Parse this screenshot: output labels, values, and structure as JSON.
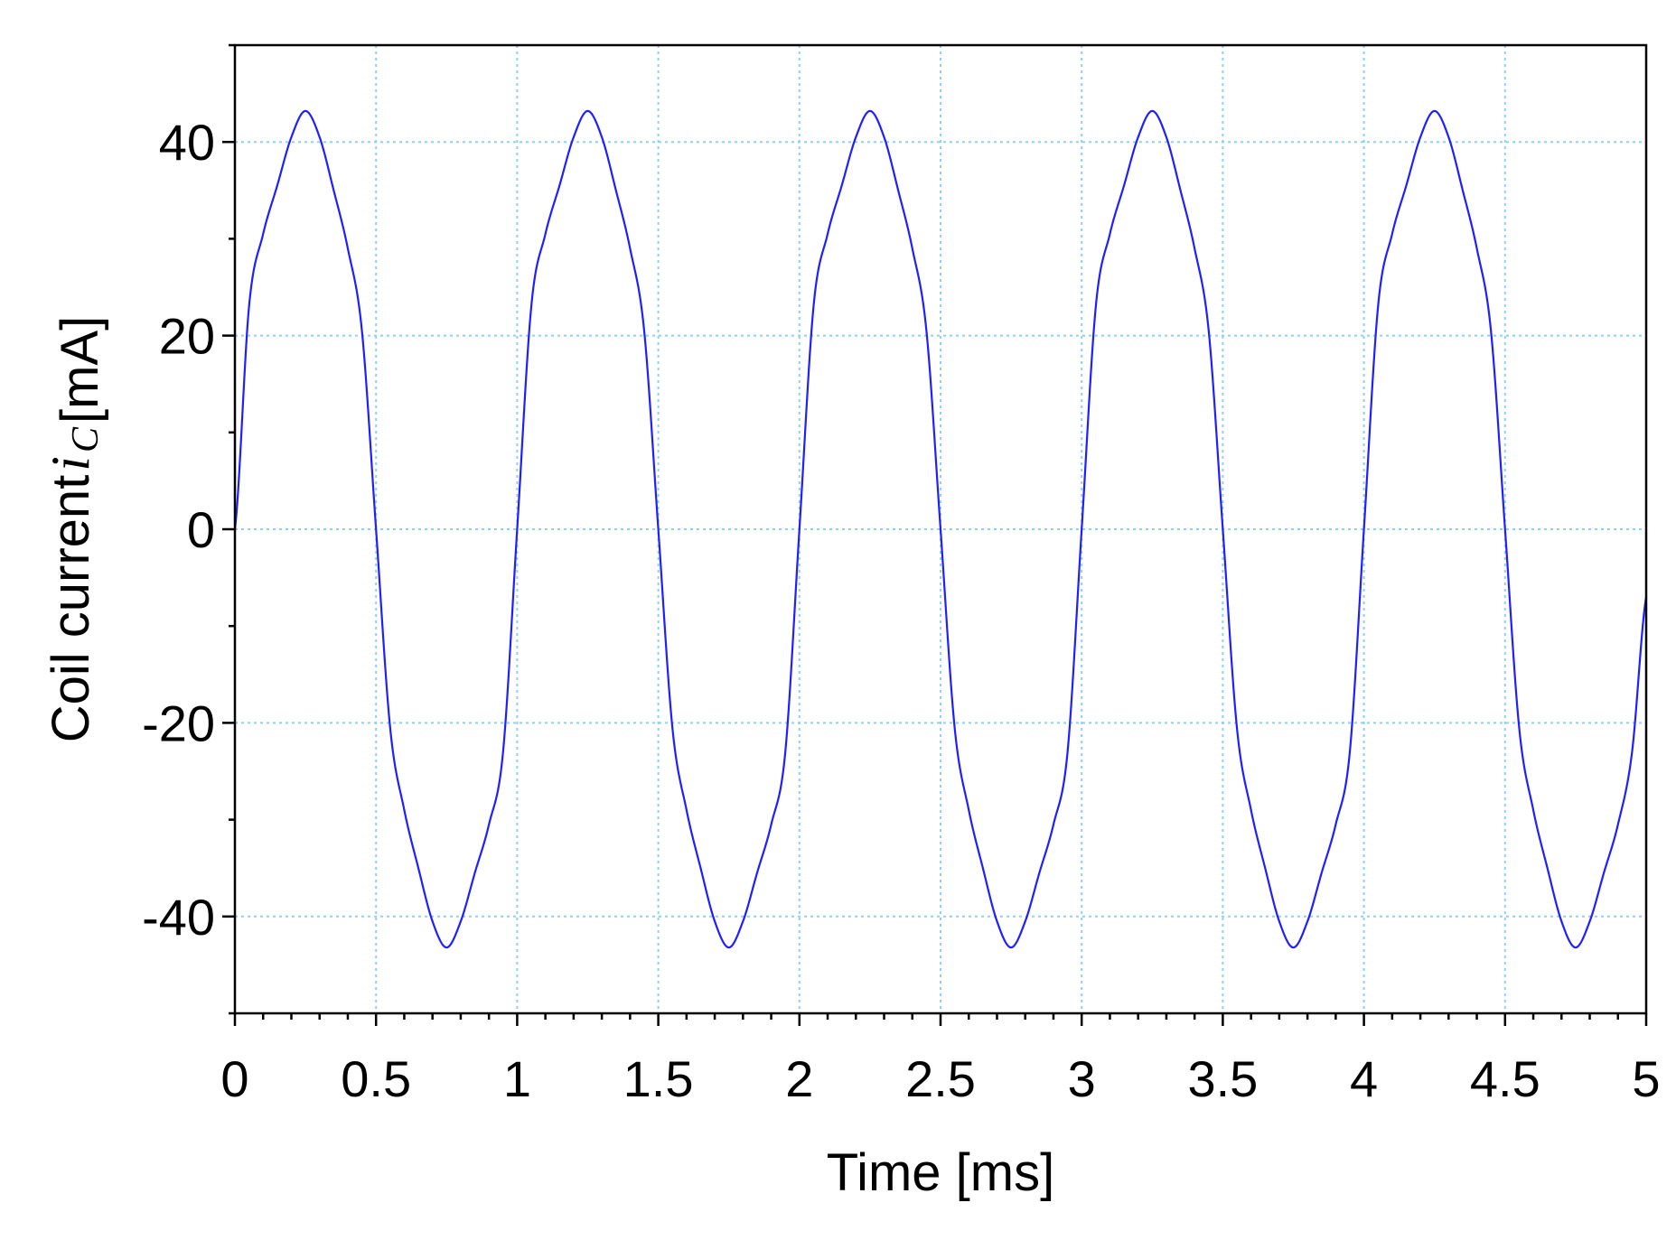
{
  "chart_data": {
    "type": "line",
    "title": "",
    "xlabel": "Time [ms]",
    "ylabel": {
      "prefix": "Coil current",
      "symbol": "i",
      "subscript": "C",
      "unit": "[mA]"
    },
    "xlim": [
      0,
      5
    ],
    "ylim": [
      -50,
      50
    ],
    "x_ticks": [
      "0",
      "0.5",
      "1",
      "1.5",
      "2",
      "2.5",
      "3",
      "3.5",
      "4",
      "4.5",
      "5"
    ],
    "x_tick_values": [
      0,
      0.5,
      1,
      1.5,
      2,
      2.5,
      3,
      3.5,
      4,
      4.5,
      5
    ],
    "y_ticks": [
      "40",
      "20",
      "0",
      "-20",
      "-40"
    ],
    "y_tick_values": [
      40,
      20,
      0,
      -20,
      -40
    ],
    "grid": true,
    "legend": "none",
    "colors": {
      "series": "#1f1fff",
      "grid": "#8fd0f5",
      "axes": "#000000"
    },
    "series": [
      {
        "points": [
          [
            0.0,
            0.0
          ],
          [
            0.05,
            23.0
          ],
          [
            0.1,
            30.5
          ],
          [
            0.15,
            35.5
          ],
          [
            0.2,
            40.5
          ],
          [
            0.25,
            43.2
          ],
          [
            0.3,
            40.5
          ],
          [
            0.35,
            35.0
          ],
          [
            0.4,
            29.0
          ],
          [
            0.45,
            20.5
          ],
          [
            0.5,
            0.0
          ],
          [
            0.55,
            -20.5
          ],
          [
            0.6,
            -29.0
          ],
          [
            0.65,
            -35.0
          ],
          [
            0.7,
            -40.5
          ],
          [
            0.75,
            -43.2
          ],
          [
            0.8,
            -40.5
          ],
          [
            0.85,
            -35.5
          ],
          [
            0.9,
            -30.5
          ],
          [
            0.95,
            -23.0
          ],
          [
            1.0,
            0.0
          ],
          [
            1.05,
            23.0
          ],
          [
            1.1,
            30.5
          ],
          [
            1.15,
            35.5
          ],
          [
            1.2,
            40.5
          ],
          [
            1.25,
            43.2
          ],
          [
            1.3,
            40.5
          ],
          [
            1.35,
            35.0
          ],
          [
            1.4,
            29.0
          ],
          [
            1.45,
            20.5
          ],
          [
            1.5,
            0.0
          ],
          [
            1.55,
            -20.5
          ],
          [
            1.6,
            -29.0
          ],
          [
            1.65,
            -35.0
          ],
          [
            1.7,
            -40.5
          ],
          [
            1.75,
            -43.2
          ],
          [
            1.8,
            -40.5
          ],
          [
            1.85,
            -35.5
          ],
          [
            1.9,
            -30.5
          ],
          [
            1.95,
            -23.0
          ],
          [
            2.0,
            0.0
          ],
          [
            2.05,
            23.0
          ],
          [
            2.1,
            30.5
          ],
          [
            2.15,
            35.5
          ],
          [
            2.2,
            40.5
          ],
          [
            2.25,
            43.2
          ],
          [
            2.3,
            40.5
          ],
          [
            2.35,
            35.0
          ],
          [
            2.4,
            29.0
          ],
          [
            2.45,
            20.5
          ],
          [
            2.5,
            0.0
          ],
          [
            2.55,
            -20.5
          ],
          [
            2.6,
            -29.0
          ],
          [
            2.65,
            -35.0
          ],
          [
            2.7,
            -40.5
          ],
          [
            2.75,
            -43.2
          ],
          [
            2.8,
            -40.5
          ],
          [
            2.85,
            -35.5
          ],
          [
            2.9,
            -30.5
          ],
          [
            2.95,
            -23.0
          ],
          [
            3.0,
            0.0
          ],
          [
            3.05,
            23.0
          ],
          [
            3.1,
            30.5
          ],
          [
            3.15,
            35.5
          ],
          [
            3.2,
            40.5
          ],
          [
            3.25,
            43.2
          ],
          [
            3.3,
            40.5
          ],
          [
            3.35,
            35.0
          ],
          [
            3.4,
            29.0
          ],
          [
            3.45,
            20.5
          ],
          [
            3.5,
            0.0
          ],
          [
            3.55,
            -20.5
          ],
          [
            3.6,
            -29.0
          ],
          [
            3.65,
            -35.0
          ],
          [
            3.7,
            -40.5
          ],
          [
            3.75,
            -43.2
          ],
          [
            3.8,
            -40.5
          ],
          [
            3.85,
            -35.5
          ],
          [
            3.9,
            -30.5
          ],
          [
            3.95,
            -23.0
          ],
          [
            4.0,
            0.0
          ],
          [
            4.05,
            23.0
          ],
          [
            4.1,
            30.5
          ],
          [
            4.15,
            35.5
          ],
          [
            4.2,
            40.5
          ],
          [
            4.25,
            43.2
          ],
          [
            4.3,
            40.5
          ],
          [
            4.35,
            35.0
          ],
          [
            4.4,
            29.0
          ],
          [
            4.45,
            20.5
          ],
          [
            4.5,
            0.0
          ],
          [
            4.55,
            -20.5
          ],
          [
            4.6,
            -29.0
          ],
          [
            4.65,
            -35.0
          ],
          [
            4.7,
            -40.5
          ],
          [
            4.75,
            -43.2
          ],
          [
            4.8,
            -40.5
          ],
          [
            4.85,
            -35.5
          ],
          [
            4.9,
            -30.5
          ],
          [
            4.95,
            -23.0
          ],
          [
            5.0,
            -7.0
          ]
        ]
      }
    ]
  }
}
